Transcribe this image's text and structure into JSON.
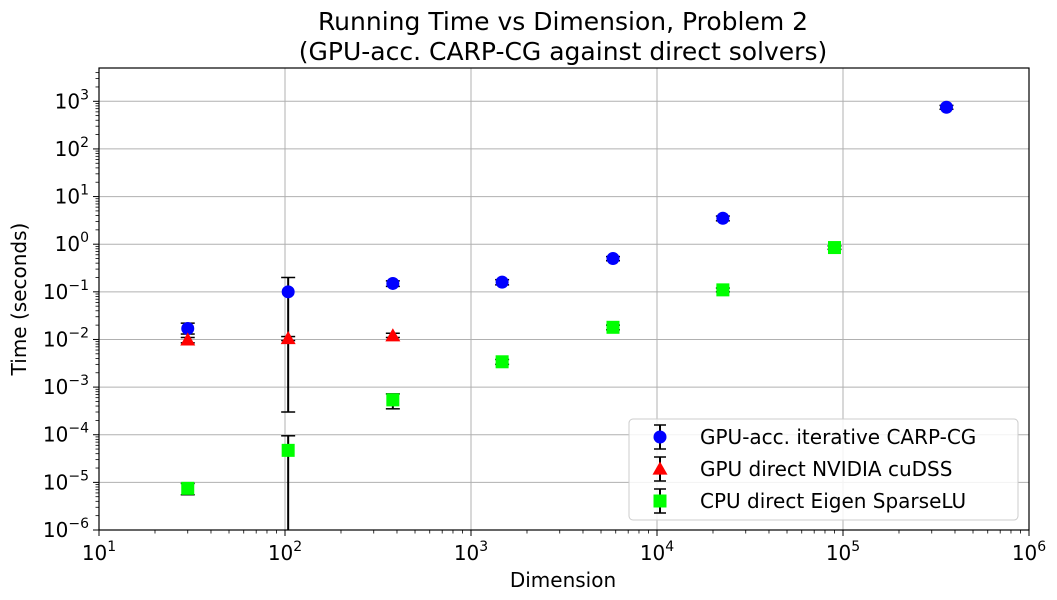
{
  "chart_data": {
    "type": "scatter",
    "title": "Running Time vs Dimension, Problem 2",
    "subtitle": "(GPU-acc. CARP-CG against direct solvers)",
    "xlabel": "Dimension",
    "ylabel": "Time (seconds)",
    "xscale": "log",
    "yscale": "log",
    "xlim": [
      10,
      1000000
    ],
    "ylim": [
      1e-06,
      5000
    ],
    "grid": true,
    "legend_position": "lower-right",
    "x_ticks": [
      10,
      100,
      1000,
      10000,
      100000,
      1000000
    ],
    "y_ticks": [
      1e-06,
      1e-05,
      0.0001,
      0.001,
      0.01,
      0.1,
      1,
      10,
      100,
      1000
    ],
    "series": [
      {
        "name": "GPU-acc. iterative CARP-CG",
        "color": "#0000ff",
        "marker": "circle",
        "x": [
          30,
          104,
          380,
          1470,
          5800,
          22600,
          360000
        ],
        "y": [
          0.017,
          0.1,
          0.15,
          0.16,
          0.5,
          3.5,
          750
        ],
        "err_low": [
          0.013,
          0.0003,
          0.13,
          0.14,
          0.45,
          3.1,
          680
        ],
        "err_high": [
          0.022,
          0.2,
          0.17,
          0.18,
          0.55,
          3.9,
          820
        ]
      },
      {
        "name": "GPU direct NVIDIA cuDSS",
        "color": "#ff0000",
        "marker": "triangle",
        "x": [
          30,
          104,
          380
        ],
        "y": [
          0.0098,
          0.0105,
          0.012
        ],
        "err_low": [
          0.0085,
          0.0095,
          0.011
        ],
        "err_high": [
          0.011,
          0.0115,
          0.0135
        ]
      },
      {
        "name": "CPU direct Eigen SparseLU",
        "color": "#00ff00",
        "marker": "square",
        "x": [
          30,
          104,
          380,
          1470,
          5800,
          22600,
          90000
        ],
        "y": [
          7.5e-06,
          4.7e-05,
          0.00054,
          0.0034,
          0.018,
          0.11,
          0.85
        ],
        "err_low": [
          5.5e-06,
          8e-07,
          0.00035,
          0.003,
          0.016,
          0.1,
          0.78
        ],
        "err_high": [
          9.5e-06,
          9.5e-05,
          0.00072,
          0.0038,
          0.02,
          0.12,
          0.92
        ]
      }
    ]
  }
}
